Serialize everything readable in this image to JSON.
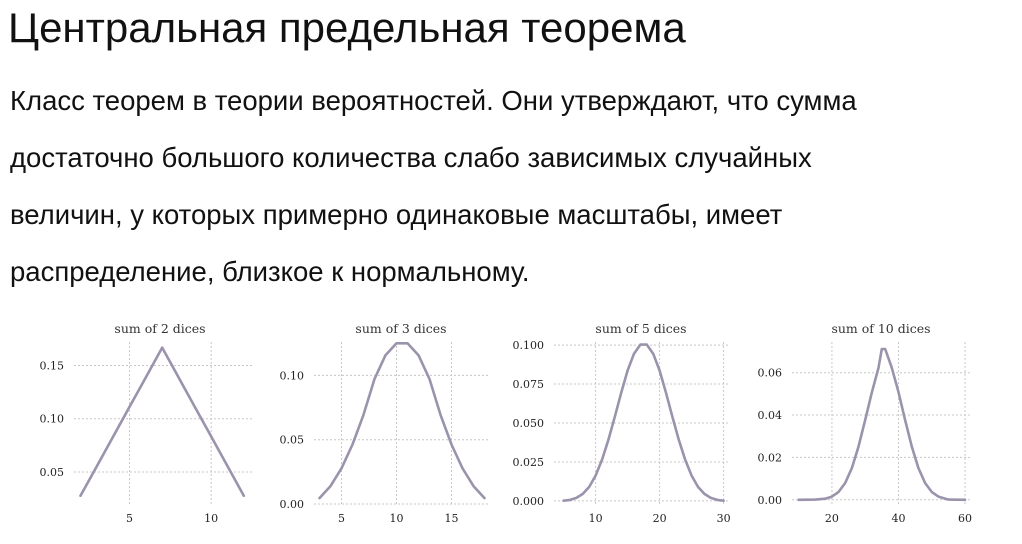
{
  "slide": {
    "title": "Центральная предельная теорема",
    "body_lines": [
      "Класс теорем в теории вероятностей. Они утверждают, что сумма",
      "достаточно большого количества слабо зависимых случайных",
      "величин, у которых примерно одинаковые масштабы, имеет",
      "распределение, близкое к нормальному."
    ]
  },
  "style": {
    "line_color": "#9b93ab",
    "grid_color": "#c8c8c8"
  },
  "chart_data": [
    {
      "type": "line",
      "title": "sum of 2 dices",
      "xlabel": "",
      "ylabel": "",
      "xlim": [
        1.6,
        12.5
      ],
      "ylim": [
        0.02,
        0.172
      ],
      "xticks": [
        5,
        10
      ],
      "xtick_labels": [
        "5",
        "10"
      ],
      "yticks": [
        0.05,
        0.1,
        0.15
      ],
      "ytick_labels": [
        "0.05",
        "0.10",
        "0.15"
      ],
      "grid": true,
      "series": [
        {
          "x": [
            2,
            3,
            4,
            5,
            6,
            7,
            8,
            9,
            10,
            11,
            12
          ],
          "y": [
            0.0278,
            0.0556,
            0.0833,
            0.1111,
            0.1389,
            0.1667,
            0.1389,
            0.1111,
            0.0833,
            0.0556,
            0.0278
          ]
        }
      ]
    },
    {
      "type": "line",
      "title": "sum of 3 dices",
      "xlabel": "",
      "ylabel": "",
      "xlim": [
        2.5,
        18.5
      ],
      "ylim": [
        0,
        0.126
      ],
      "xticks": [
        5,
        10,
        15
      ],
      "xtick_labels": [
        "5",
        "10",
        "15"
      ],
      "yticks": [
        0.0,
        0.05,
        0.1
      ],
      "ytick_labels": [
        "0.00",
        "0.05",
        "0.10"
      ],
      "grid": true,
      "series": [
        {
          "x": [
            3,
            4,
            5,
            6,
            7,
            8,
            9,
            10,
            11,
            12,
            13,
            14,
            15,
            16,
            17,
            18
          ],
          "y": [
            0.0046,
            0.0139,
            0.0278,
            0.0463,
            0.0694,
            0.0972,
            0.1157,
            0.125,
            0.125,
            0.1157,
            0.0972,
            0.0694,
            0.0463,
            0.0278,
            0.0139,
            0.0046
          ]
        }
      ]
    },
    {
      "type": "line",
      "title": "sum of 5 dices",
      "xlabel": "",
      "ylabel": "",
      "xlim": [
        3.5,
        31
      ],
      "ylim": [
        -0.002,
        0.102
      ],
      "xticks": [
        10,
        20,
        30
      ],
      "xtick_labels": [
        "10",
        "20",
        "30"
      ],
      "yticks": [
        0.0,
        0.025,
        0.05,
        0.075,
        0.1
      ],
      "ytick_labels": [
        "0.000",
        "0.025",
        "0.050",
        "0.075",
        "0.100"
      ],
      "grid": true,
      "series": [
        {
          "x": [
            5,
            6,
            7,
            8,
            9,
            10,
            11,
            12,
            13,
            14,
            15,
            16,
            17,
            18,
            19,
            20,
            21,
            22,
            23,
            24,
            25,
            26,
            27,
            28,
            29,
            30
          ],
          "y": [
            0.0001,
            0.0006,
            0.0019,
            0.0045,
            0.009,
            0.0162,
            0.0264,
            0.0392,
            0.054,
            0.0694,
            0.0837,
            0.0945,
            0.1003,
            0.1003,
            0.0945,
            0.0837,
            0.0694,
            0.054,
            0.0392,
            0.0264,
            0.0162,
            0.009,
            0.0045,
            0.0019,
            0.0006,
            0.0001
          ]
        }
      ]
    },
    {
      "type": "line",
      "title": "sum of 10 dices",
      "xlabel": "",
      "ylabel": "",
      "xlim": [
        8,
        61.5
      ],
      "ylim": [
        -0.002,
        0.0745
      ],
      "xticks": [
        20,
        40,
        60
      ],
      "xtick_labels": [
        "20",
        "40",
        "60"
      ],
      "yticks": [
        0.0,
        0.02,
        0.04,
        0.06
      ],
      "ytick_labels": [
        "0.00",
        "0.02",
        "0.04",
        "0.06"
      ],
      "grid": true,
      "series": [
        {
          "x": [
            10,
            15,
            18,
            20,
            22,
            24,
            26,
            28,
            30,
            32,
            34,
            35,
            36,
            38,
            40,
            42,
            44,
            46,
            48,
            50,
            52,
            55,
            60
          ],
          "y": [
            0,
            0.0001,
            0.0005,
            0.0015,
            0.0037,
            0.0079,
            0.015,
            0.0251,
            0.0377,
            0.0508,
            0.0623,
            0.0712,
            0.0712,
            0.0623,
            0.0508,
            0.0377,
            0.0251,
            0.015,
            0.0079,
            0.0037,
            0.0015,
            0.0001,
            0
          ]
        }
      ]
    }
  ]
}
